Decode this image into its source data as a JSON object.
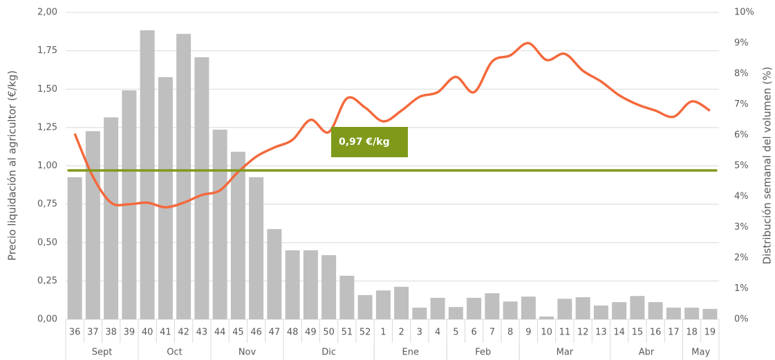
{
  "chart_data": {
    "type": "bar_line",
    "y_label": "Precio liquidación al agricultor (€/kg)",
    "y2_label": "Distribución semanal del volumen (%)",
    "categories": [
      "36",
      "37",
      "38",
      "39",
      "40",
      "41",
      "42",
      "43",
      "44",
      "45",
      "46",
      "47",
      "48",
      "49",
      "50",
      "51",
      "52",
      "1",
      "2",
      "3",
      "4",
      "5",
      "6",
      "7",
      "8",
      "9",
      "10",
      "11",
      "12",
      "13",
      "14",
      "15",
      "16",
      "17",
      "18",
      "19"
    ],
    "groups": [
      {
        "label": "Sept",
        "span": 4
      },
      {
        "label": "Oct",
        "span": 4
      },
      {
        "label": "Nov",
        "span": 4
      },
      {
        "label": "Dic",
        "span": 5
      },
      {
        "label": "Ene",
        "span": 4
      },
      {
        "label": "Feb",
        "span": 4
      },
      {
        "label": "Mar",
        "span": 5
      },
      {
        "label": "Abr",
        "span": 4
      },
      {
        "label": "May",
        "span": 2
      }
    ],
    "series": [
      {
        "type": "bar",
        "axis": "y2",
        "color": "#bfbfbf",
        "values": [
          4.63,
          6.13,
          6.58,
          7.46,
          9.42,
          7.89,
          9.3,
          8.54,
          6.18,
          5.46,
          4.63,
          2.94,
          2.25,
          2.25,
          2.09,
          1.42,
          0.79,
          0.94,
          1.06,
          0.38,
          0.7,
          0.4,
          0.7,
          0.85,
          0.58,
          0.74,
          0.09,
          0.67,
          0.72,
          0.45,
          0.56,
          0.76,
          0.56,
          0.38,
          0.38,
          0.34
        ]
      },
      {
        "type": "line",
        "axis": "y",
        "color": "#f4693c",
        "values": [
          1.21,
          0.93,
          0.76,
          0.75,
          0.76,
          0.73,
          0.76,
          0.81,
          0.84,
          0.96,
          1.06,
          1.12,
          1.17,
          1.3,
          1.22,
          1.44,
          1.38,
          1.29,
          1.36,
          1.45,
          1.48,
          1.58,
          1.48,
          1.68,
          1.72,
          1.8,
          1.69,
          1.73,
          1.62,
          1.55,
          1.46,
          1.4,
          1.36,
          1.32,
          1.42,
          1.36
        ]
      }
    ],
    "reference": {
      "value": 0.97,
      "label": "0,97 €/kg",
      "color": "#7f9a1a"
    },
    "ylim": [
      0,
      2
    ],
    "yticks": [
      {
        "value": 0,
        "label": "0,00"
      },
      {
        "value": 0.25,
        "label": "0,25"
      },
      {
        "value": 0.5,
        "label": "0,50"
      },
      {
        "value": 0.75,
        "label": "0,75"
      },
      {
        "value": 1,
        "label": "1,00"
      },
      {
        "value": 1.25,
        "label": "1,25"
      },
      {
        "value": 1.5,
        "label": "1,50"
      },
      {
        "value": 1.75,
        "label": "1,75"
      },
      {
        "value": 2,
        "label": "2,00"
      }
    ],
    "y2lim": [
      0,
      10
    ],
    "y2ticks": [
      {
        "value": 0,
        "label": "0%"
      },
      {
        "value": 1,
        "label": "1%"
      },
      {
        "value": 2,
        "label": "2%"
      },
      {
        "value": 3,
        "label": "3%"
      },
      {
        "value": 4,
        "label": "4%"
      },
      {
        "value": 5,
        "label": "5%"
      },
      {
        "value": 6,
        "label": "6%"
      },
      {
        "value": 7,
        "label": "7%"
      },
      {
        "value": 8,
        "label": "8%"
      },
      {
        "value": 9,
        "label": "9%"
      },
      {
        "value": 10,
        "label": "10%"
      }
    ],
    "grid": true
  }
}
